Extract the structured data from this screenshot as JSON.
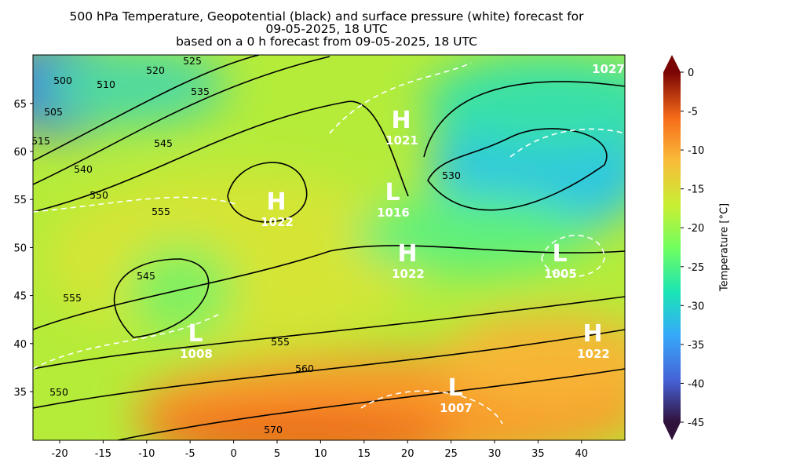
{
  "header": {
    "title": [
      "500 hPa Temperature, Geopotential (black) and surface pressure (white) forecast for",
      "09-05-2025, 18 UTC",
      "based on a 0 h forecast from 09-05-2025, 18 UTC"
    ]
  },
  "axes": {
    "xticks": [
      -20,
      -15,
      -10,
      -5,
      0,
      5,
      10,
      15,
      20,
      25,
      30,
      35,
      40
    ],
    "yticks": [
      35,
      40,
      45,
      50,
      55,
      60,
      65
    ]
  },
  "colorbar": {
    "label": "Temperature [°C]",
    "ticks": [
      0,
      -5,
      -10,
      -15,
      -20,
      -25,
      -30,
      -35,
      -40,
      -45
    ]
  },
  "geopotential_labels": [
    "500",
    "505",
    "510",
    "515",
    "520",
    "525",
    "535",
    "545",
    "540",
    "550",
    "555",
    "545",
    "555",
    "555",
    "560",
    "550",
    "570",
    "530"
  ],
  "pressure_centers": [
    {
      "kind": "H",
      "value": "1021"
    },
    {
      "kind": "H",
      "value": "1022"
    },
    {
      "kind": "L",
      "value": "1016"
    },
    {
      "kind": "H",
      "value": "1022"
    },
    {
      "kind": "L",
      "value": "1005"
    },
    {
      "kind": "L",
      "value": "1008"
    },
    {
      "kind": "H",
      "value": "1022"
    },
    {
      "kind": "L",
      "value": "1007"
    }
  ],
  "edge_labels": [
    "1027"
  ]
}
